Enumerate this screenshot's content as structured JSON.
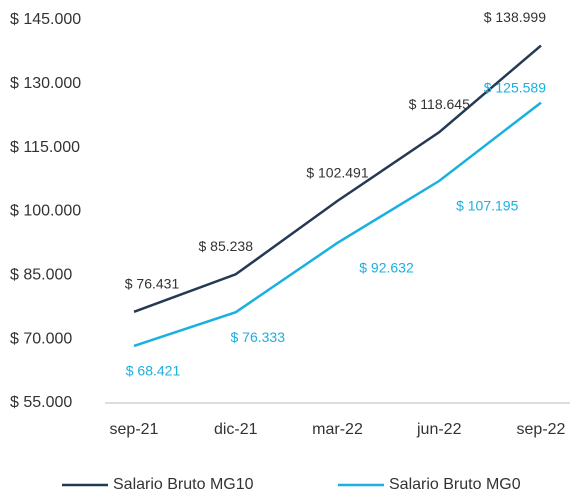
{
  "chart_data": {
    "type": "line",
    "categories": [
      "sep-21",
      "dic-21",
      "mar-22",
      "jun-22",
      "sep-22"
    ],
    "series": [
      {
        "name": "Salario Bruto MG10",
        "color": "#243a54",
        "values": [
          76431,
          85238,
          102491,
          118645,
          138999
        ],
        "value_labels": [
          "$ 76.431",
          "$ 85.238",
          "$ 102.491",
          "$ 118.645",
          "$ 138.999"
        ],
        "label_color": "#333333"
      },
      {
        "name": "Salario Bruto MG0",
        "color": "#1ab0e0",
        "values": [
          68421,
          76333,
          92632,
          107195,
          125589
        ],
        "value_labels": [
          "$ 68.421",
          "$ 76.333",
          "$ 92.632",
          "$ 107.195",
          "$ 125.589"
        ],
        "label_color": "#1ab0e0"
      }
    ],
    "ylim": [
      55000,
      145000
    ],
    "yticks": [
      {
        "value": 55000,
        "label": "$ 55.000"
      },
      {
        "value": 70000,
        "label": "$ 70.000"
      },
      {
        "value": 85000,
        "label": "$ 85.000"
      },
      {
        "value": 100000,
        "label": "$ 100.000"
      },
      {
        "value": 115000,
        "label": "$ 115.000"
      },
      {
        "value": 130000,
        "label": "$ 130.000"
      },
      {
        "value": 145000,
        "label": "$ 145.000"
      }
    ],
    "grid": false,
    "legend": "bottom"
  }
}
